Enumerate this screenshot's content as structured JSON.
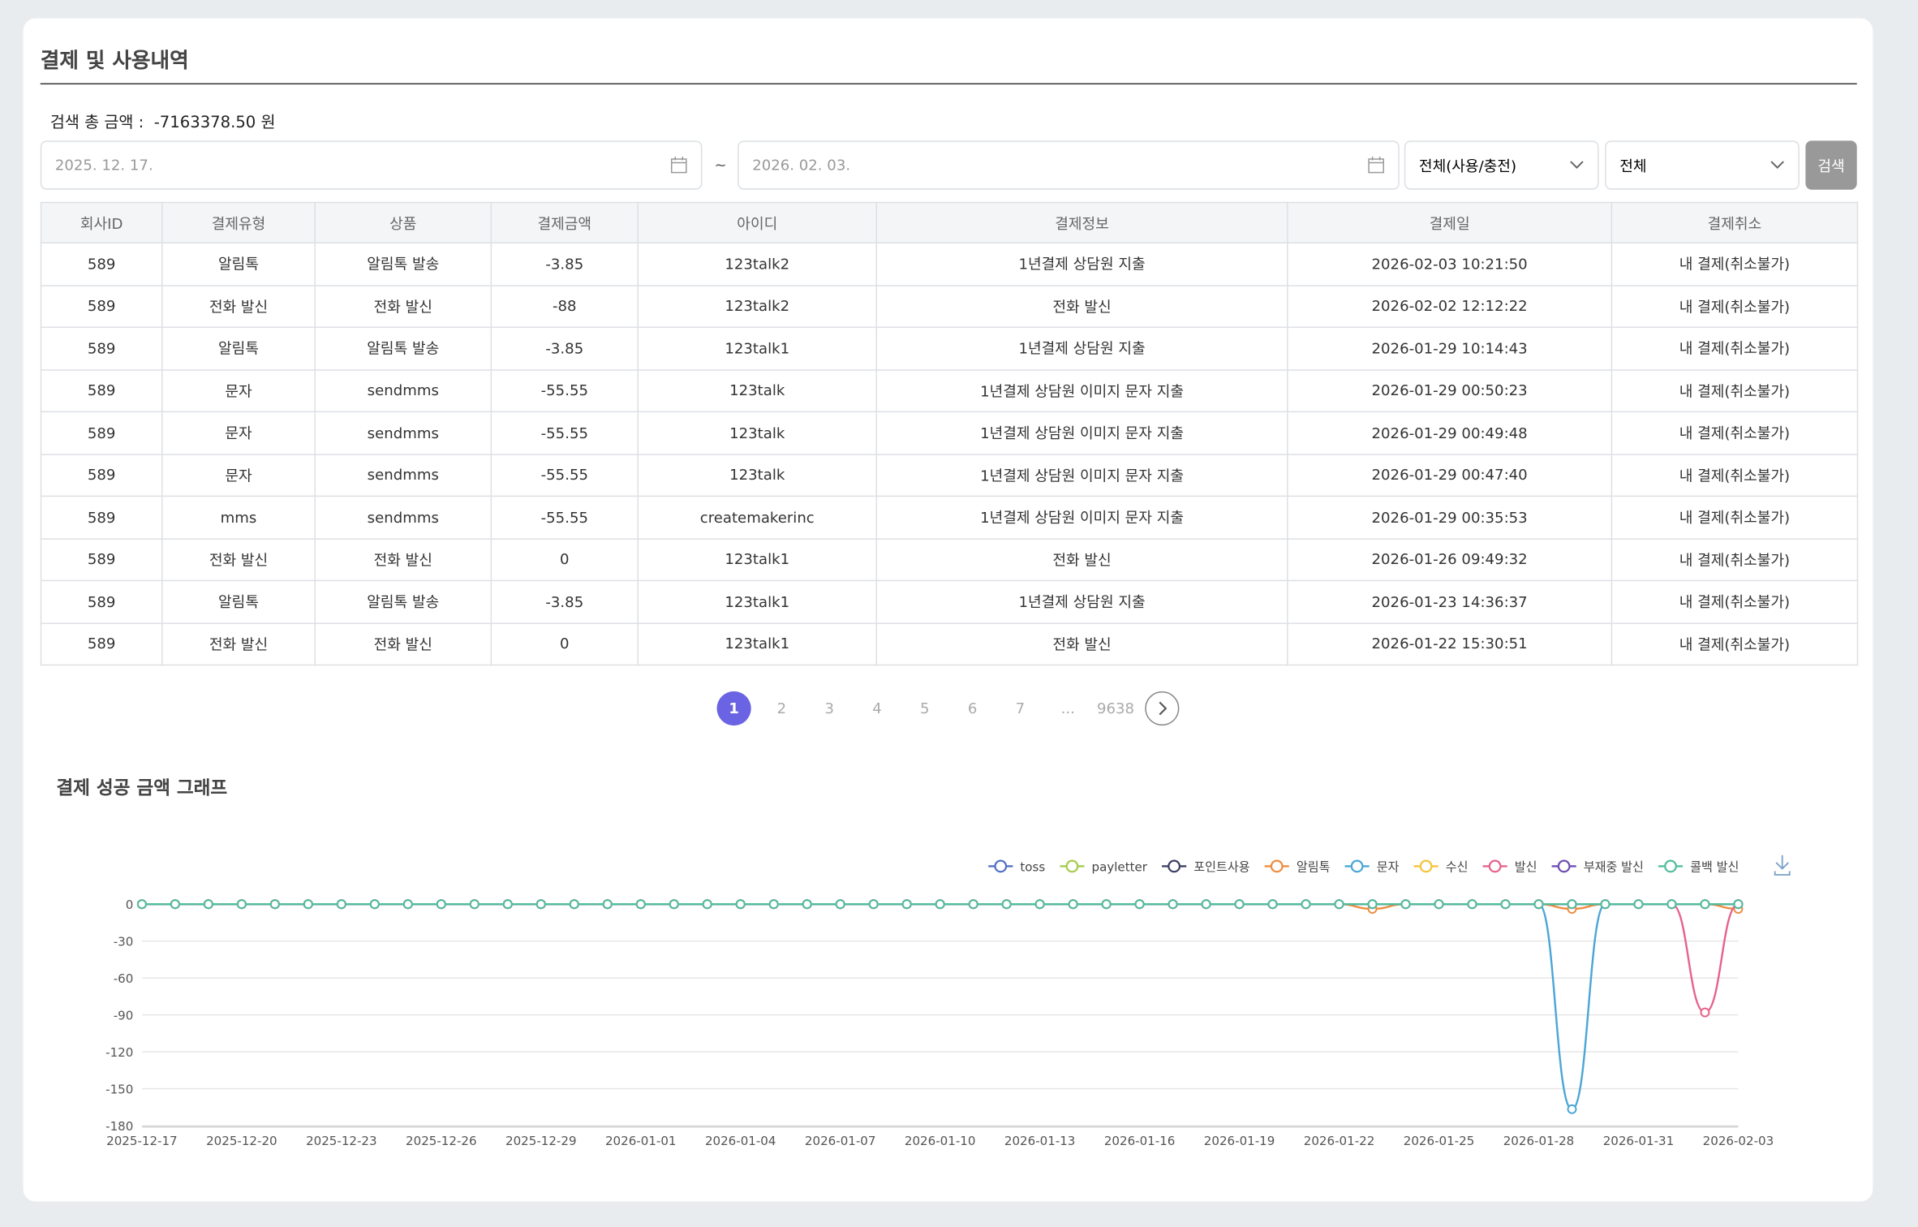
{
  "header": {
    "title": "결제 및 사용내역"
  },
  "summary": {
    "label": "검색 총 금액 :",
    "value": "-7163378.50 원"
  },
  "filters": {
    "start_date": "2025. 12. 17.",
    "separator": "~",
    "end_date": "2026. 02. 03.",
    "type_select": "전체(사용/충전)",
    "all_select": "전체",
    "search_button": "검색"
  },
  "table": {
    "headers": [
      "회사ID",
      "결제유형",
      "상품",
      "결제금액",
      "아이디",
      "결제정보",
      "결제일",
      "결제취소"
    ],
    "rows": [
      [
        "589",
        "알림톡",
        "알림톡 발송",
        "-3.85",
        "123talk2",
        "1년결제 상담원 지출",
        "2026-02-03 10:21:50",
        "내 결제(취소불가)"
      ],
      [
        "589",
        "전화 발신",
        "전화 발신",
        "-88",
        "123talk2",
        "전화 발신",
        "2026-02-02 12:12:22",
        "내 결제(취소불가)"
      ],
      [
        "589",
        "알림톡",
        "알림톡 발송",
        "-3.85",
        "123talk1",
        "1년결제 상담원 지출",
        "2026-01-29 10:14:43",
        "내 결제(취소불가)"
      ],
      [
        "589",
        "문자",
        "sendmms",
        "-55.55",
        "123talk",
        "1년결제 상담원 이미지 문자 지출",
        "2026-01-29 00:50:23",
        "내 결제(취소불가)"
      ],
      [
        "589",
        "문자",
        "sendmms",
        "-55.55",
        "123talk",
        "1년결제 상담원 이미지 문자 지출",
        "2026-01-29 00:49:48",
        "내 결제(취소불가)"
      ],
      [
        "589",
        "문자",
        "sendmms",
        "-55.55",
        "123talk",
        "1년결제 상담원 이미지 문자 지출",
        "2026-01-29 00:47:40",
        "내 결제(취소불가)"
      ],
      [
        "589",
        "mms",
        "sendmms",
        "-55.55",
        "createmakerinc",
        "1년결제 상담원 이미지 문자 지출",
        "2026-01-29 00:35:53",
        "내 결제(취소불가)"
      ],
      [
        "589",
        "전화 발신",
        "전화 발신",
        "0",
        "123talk1",
        "전화 발신",
        "2026-01-26 09:49:32",
        "내 결제(취소불가)"
      ],
      [
        "589",
        "알림톡",
        "알림톡 발송",
        "-3.85",
        "123talk1",
        "1년결제 상담원 지출",
        "2026-01-23 14:36:37",
        "내 결제(취소불가)"
      ],
      [
        "589",
        "전화 발신",
        "전화 발신",
        "0",
        "123talk1",
        "전화 발신",
        "2026-01-22 15:30:51",
        "내 결제(취소불가)"
      ]
    ]
  },
  "pagination": {
    "pages": [
      "1",
      "2",
      "3",
      "4",
      "5",
      "6",
      "7",
      "...",
      "9638"
    ],
    "current": 0
  },
  "chart_data": {
    "type": "line",
    "title": "결제 성공 금액 그래프",
    "x": [
      "2025-12-17",
      "2025-12-18",
      "2025-12-19",
      "2025-12-20",
      "2025-12-21",
      "2025-12-22",
      "2025-12-23",
      "2025-12-24",
      "2025-12-25",
      "2025-12-26",
      "2025-12-27",
      "2025-12-28",
      "2025-12-29",
      "2025-12-30",
      "2025-12-31",
      "2026-01-01",
      "2026-01-02",
      "2026-01-03",
      "2026-01-04",
      "2026-01-05",
      "2026-01-06",
      "2026-01-07",
      "2026-01-08",
      "2026-01-09",
      "2026-01-10",
      "2026-01-11",
      "2026-01-12",
      "2026-01-13",
      "2026-01-14",
      "2026-01-15",
      "2026-01-16",
      "2026-01-17",
      "2026-01-18",
      "2026-01-19",
      "2026-01-20",
      "2026-01-21",
      "2026-01-22",
      "2026-01-23",
      "2026-01-24",
      "2026-01-25",
      "2026-01-26",
      "2026-01-27",
      "2026-01-28",
      "2026-01-29",
      "2026-01-30",
      "2026-01-31",
      "2026-02-01",
      "2026-02-02",
      "2026-02-03"
    ],
    "ylim": [
      -180,
      0
    ],
    "yticks": [
      0,
      -30,
      -60,
      -90,
      -120,
      -150,
      -180
    ],
    "grid": true,
    "series": [
      {
        "name": "toss",
        "color": "#5470c6",
        "values": [
          0,
          0,
          0,
          0,
          0,
          0,
          0,
          0,
          0,
          0,
          0,
          0,
          0,
          0,
          0,
          0,
          0,
          0,
          0,
          0,
          0,
          0,
          0,
          0,
          0,
          0,
          0,
          0,
          0,
          0,
          0,
          0,
          0,
          0,
          0,
          0,
          0,
          0,
          0,
          0,
          0,
          0,
          0,
          0,
          0,
          0,
          0,
          0,
          0
        ]
      },
      {
        "name": "payletter",
        "color": "#a5cc4f",
        "values": [
          0,
          0,
          0,
          0,
          0,
          0,
          0,
          0,
          0,
          0,
          0,
          0,
          0,
          0,
          0,
          0,
          0,
          0,
          0,
          0,
          0,
          0,
          0,
          0,
          0,
          0,
          0,
          0,
          0,
          0,
          0,
          0,
          0,
          0,
          0,
          0,
          0,
          0,
          0,
          0,
          0,
          0,
          0,
          0,
          0,
          0,
          0,
          0,
          0
        ]
      },
      {
        "name": "포인트사용",
        "color": "#3c4063",
        "values": [
          0,
          0,
          0,
          0,
          0,
          0,
          0,
          0,
          0,
          0,
          0,
          0,
          0,
          0,
          0,
          0,
          0,
          0,
          0,
          0,
          0,
          0,
          0,
          0,
          0,
          0,
          0,
          0,
          0,
          0,
          0,
          0,
          0,
          0,
          0,
          0,
          0,
          0,
          0,
          0,
          0,
          0,
          0,
          0,
          0,
          0,
          0,
          0,
          0
        ]
      },
      {
        "name": "알림톡",
        "color": "#ef8c3e",
        "values": [
          0,
          0,
          0,
          0,
          0,
          0,
          0,
          0,
          0,
          0,
          0,
          0,
          0,
          0,
          0,
          0,
          0,
          0,
          0,
          0,
          0,
          0,
          0,
          0,
          0,
          0,
          0,
          0,
          0,
          0,
          0,
          0,
          0,
          0,
          0,
          0,
          0,
          -3.85,
          0,
          0,
          0,
          0,
          0,
          -3.85,
          0,
          0,
          0,
          0,
          -3.85
        ]
      },
      {
        "name": "문자",
        "color": "#4aa6d6",
        "values": [
          0,
          0,
          0,
          0,
          0,
          0,
          0,
          0,
          0,
          0,
          0,
          0,
          0,
          0,
          0,
          0,
          0,
          0,
          0,
          0,
          0,
          0,
          0,
          0,
          0,
          0,
          0,
          0,
          0,
          0,
          0,
          0,
          0,
          0,
          0,
          0,
          0,
          0,
          0,
          0,
          0,
          0,
          0,
          -166.65,
          0,
          0,
          0,
          0,
          0
        ]
      },
      {
        "name": "수신",
        "color": "#f3c43c",
        "values": [
          0,
          0,
          0,
          0,
          0,
          0,
          0,
          0,
          0,
          0,
          0,
          0,
          0,
          0,
          0,
          0,
          0,
          0,
          0,
          0,
          0,
          0,
          0,
          0,
          0,
          0,
          0,
          0,
          0,
          0,
          0,
          0,
          0,
          0,
          0,
          0,
          0,
          0,
          0,
          0,
          0,
          0,
          0,
          0,
          0,
          0,
          0,
          0,
          0
        ]
      },
      {
        "name": "발신",
        "color": "#e6638c",
        "values": [
          0,
          0,
          0,
          0,
          0,
          0,
          0,
          0,
          0,
          0,
          0,
          0,
          0,
          0,
          0,
          0,
          0,
          0,
          0,
          0,
          0,
          0,
          0,
          0,
          0,
          0,
          0,
          0,
          0,
          0,
          0,
          0,
          0,
          0,
          0,
          0,
          0,
          0,
          0,
          0,
          0,
          0,
          0,
          0,
          0,
          0,
          0,
          -88,
          0
        ]
      },
      {
        "name": "부재중 발신",
        "color": "#6f4eb2",
        "values": [
          0,
          0,
          0,
          0,
          0,
          0,
          0,
          0,
          0,
          0,
          0,
          0,
          0,
          0,
          0,
          0,
          0,
          0,
          0,
          0,
          0,
          0,
          0,
          0,
          0,
          0,
          0,
          0,
          0,
          0,
          0,
          0,
          0,
          0,
          0,
          0,
          0,
          0,
          0,
          0,
          0,
          0,
          0,
          0,
          0,
          0,
          0,
          0,
          0
        ]
      },
      {
        "name": "콜백 발신",
        "color": "#52bd9c",
        "values": [
          0,
          0,
          0,
          0,
          0,
          0,
          0,
          0,
          0,
          0,
          0,
          0,
          0,
          0,
          0,
          0,
          0,
          0,
          0,
          0,
          0,
          0,
          0,
          0,
          0,
          0,
          0,
          0,
          0,
          0,
          0,
          0,
          0,
          0,
          0,
          0,
          0,
          0,
          0,
          0,
          0,
          0,
          0,
          0,
          0,
          0,
          0,
          0,
          0
        ]
      }
    ]
  }
}
